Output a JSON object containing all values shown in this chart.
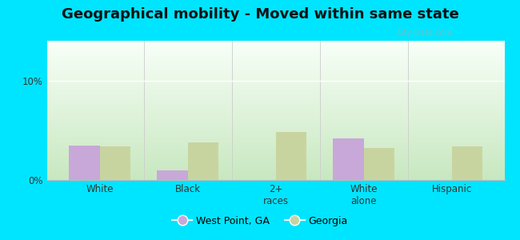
{
  "title": "Geographical mobility - Moved within same state",
  "categories": [
    "White",
    "Black",
    "2+\nraces",
    "White\nalone",
    "Hispanic"
  ],
  "west_point_values": [
    3.5,
    1.0,
    0.0,
    4.2,
    0.0
  ],
  "georgia_values": [
    3.4,
    3.8,
    4.8,
    3.2,
    3.4
  ],
  "bar_color_wp": "#c8a8d8",
  "bar_color_ga": "#c8d4a0",
  "outer_bg": "#00e5ff",
  "ylim": [
    0,
    14
  ],
  "yticks": [
    0,
    10
  ],
  "ytick_labels": [
    "0%",
    "10%"
  ],
  "legend_labels": [
    "West Point, GA",
    "Georgia"
  ],
  "title_fontsize": 13,
  "bar_width": 0.35
}
